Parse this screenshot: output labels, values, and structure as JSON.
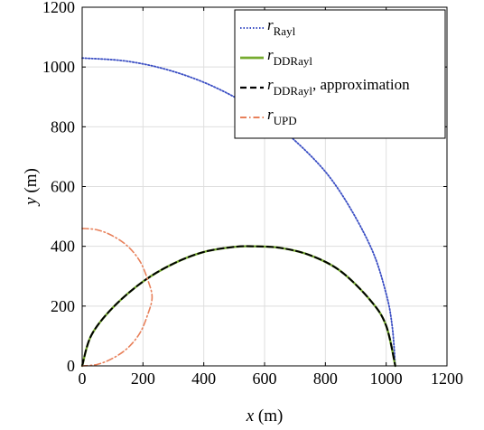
{
  "chart_data": {
    "type": "line",
    "xlabel": {
      "var": "x",
      "unit": " (m)"
    },
    "ylabel": {
      "var": "y",
      "unit": " (m)"
    },
    "xlim": [
      0,
      1200
    ],
    "ylim": [
      0,
      1200
    ],
    "xticks": [
      0,
      200,
      400,
      600,
      800,
      1000,
      1200
    ],
    "yticks": [
      0,
      200,
      400,
      600,
      800,
      1000,
      1200
    ],
    "grid": true,
    "legend_position": "top-right",
    "series": [
      {
        "name": {
          "main": "r",
          "sub": "Rayl",
          "suffix": ""
        },
        "color": "#3b4fc4",
        "style": "dotted",
        "x": [
          0,
          150,
          300,
          450,
          600,
          750,
          850,
          950,
          1000,
          1020,
          1030
        ],
        "y": [
          1030,
          1019,
          985,
          926,
          837,
          705,
          580,
          396,
          241,
          131,
          0
        ]
      },
      {
        "name": {
          "main": "r",
          "sub": "DDRayl",
          "suffix": ""
        },
        "color": "#77ac30",
        "style": "solid",
        "x": [
          0,
          30,
          100,
          200,
          300,
          400,
          500,
          560,
          650,
          750,
          850,
          950,
          1000,
          1030
        ],
        "y": [
          0,
          102,
          194,
          282,
          342,
          381,
          398,
          400,
          395,
          370,
          317,
          217,
          134,
          0
        ]
      },
      {
        "name": {
          "main": "r",
          "sub": "DDRayl",
          "suffix": ", approximation"
        },
        "color": "#000000",
        "style": "dashed",
        "x": [
          0,
          30,
          100,
          200,
          300,
          400,
          500,
          560,
          650,
          750,
          850,
          950,
          1000,
          1030
        ],
        "y": [
          0,
          102,
          194,
          282,
          342,
          381,
          398,
          400,
          395,
          370,
          317,
          217,
          134,
          0
        ]
      },
      {
        "name": {
          "main": "r",
          "sub": "UPD",
          "suffix": ""
        },
        "color": "#e8805a",
        "style": "dashdot",
        "x": [
          0,
          50,
          100,
          150,
          190,
          215,
          230,
          215,
          190,
          150,
          100,
          50,
          0
        ],
        "y": [
          460,
          455,
          435,
          400,
          350,
          290,
          230,
          170,
          110,
          60,
          25,
          5,
          0
        ]
      }
    ]
  }
}
